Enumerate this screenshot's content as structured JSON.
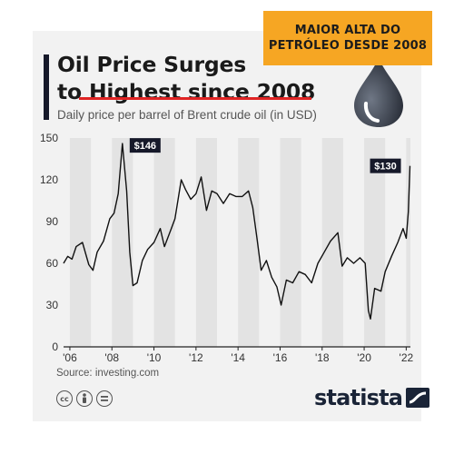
{
  "banner": {
    "text": "MAIOR ALTA DO\nPETRÓLEO DESDE 2008"
  },
  "header": {
    "title_line1": "Oil Price Surges",
    "title_line2_pre": "to ",
    "title_line2_highlight": "Highest since 2008",
    "subtitle": "Daily price per barrel of Brent crude oil (in USD)"
  },
  "footer": {
    "source": "Source: investing.com",
    "brand": "statista",
    "license_icons": [
      "cc-icon",
      "attribution-icon",
      "no-derivatives-icon"
    ]
  },
  "colors": {
    "banner": "#f6a623",
    "card": "#f2f2f2",
    "line": "#111111",
    "stripe": "#e3e3e3",
    "accent": "#e02424",
    "label_bg": "#16192a"
  },
  "chart_data": {
    "type": "line",
    "title": "Oil Price Surges to Highest since 2008",
    "subtitle": "Daily price per barrel of Brent crude oil (in USD)",
    "xlabel": "",
    "ylabel": "",
    "xlim": [
      2005.7,
      2022.2
    ],
    "ylim": [
      0,
      150
    ],
    "yticks": [
      0,
      30,
      60,
      90,
      120,
      150
    ],
    "xticks": [
      2006,
      2008,
      2010,
      2012,
      2014,
      2016,
      2018,
      2020,
      2022
    ],
    "xtick_labels": [
      "'06",
      "'08",
      "'10",
      "'12",
      "'14",
      "'16",
      "'18",
      "'20",
      "'22"
    ],
    "grid": "alternating vertical year bands",
    "annotations": [
      {
        "x": 2008.5,
        "y": 146,
        "text": "$146"
      },
      {
        "x": 2022.18,
        "y": 130,
        "text": "$130"
      }
    ],
    "series": [
      {
        "x": [
          2005.7,
          2005.9,
          2006.1,
          2006.3,
          2006.6,
          2006.9,
          2007.1,
          2007.3,
          2007.6,
          2007.9,
          2008.1,
          2008.3,
          2008.5,
          2008.7,
          2008.85,
          2009.0,
          2009.2,
          2009.45,
          2009.7,
          2010.0,
          2010.3,
          2010.5,
          2010.8,
          2011.0,
          2011.3,
          2011.5,
          2011.75,
          2012.0,
          2012.25,
          2012.5,
          2012.75,
          2013.0,
          2013.3,
          2013.6,
          2013.9,
          2014.2,
          2014.5,
          2014.7,
          2014.9,
          2015.1,
          2015.35,
          2015.6,
          2015.85,
          2016.05,
          2016.3,
          2016.6,
          2016.9,
          2017.2,
          2017.5,
          2017.8,
          2018.1,
          2018.4,
          2018.75,
          2018.95,
          2019.2,
          2019.5,
          2019.8,
          2020.05,
          2020.2,
          2020.3,
          2020.5,
          2020.8,
          2021.0,
          2021.3,
          2021.6,
          2021.85,
          2022.0,
          2022.1,
          2022.18
        ],
        "y": [
          60,
          65,
          63,
          72,
          75,
          59,
          55,
          68,
          76,
          92,
          96,
          110,
          146,
          112,
          68,
          44,
          46,
          62,
          70,
          75,
          85,
          72,
          84,
          92,
          120,
          113,
          106,
          110,
          122,
          98,
          112,
          110,
          103,
          110,
          108,
          108,
          112,
          100,
          78,
          55,
          62,
          50,
          43,
          30,
          48,
          46,
          54,
          52,
          46,
          60,
          68,
          76,
          82,
          58,
          64,
          60,
          64,
          60,
          26,
          20,
          42,
          40,
          54,
          65,
          75,
          85,
          78,
          97,
          130
        ]
      }
    ]
  }
}
